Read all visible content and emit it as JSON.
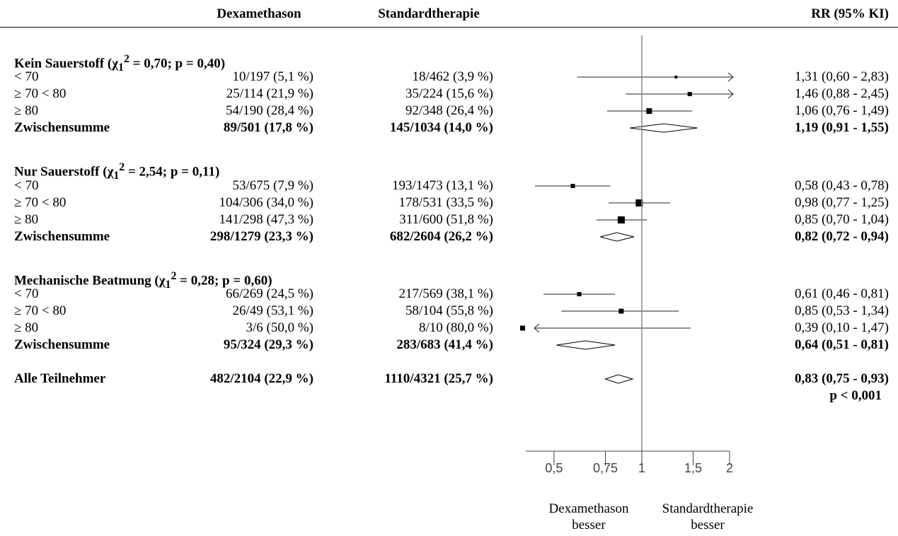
{
  "header": {
    "col_dexa": "Dexamethason",
    "col_std": "Standardtherapie",
    "col_rr": "RR (95% KI)"
  },
  "groups": [
    {
      "title_html": "Kein Sauerstoff (χ<sub>1</sub><sup>2</sup> = 0,70; p = 0,40)",
      "title_text": "Kein Sauerstoff (χ12 = 0,70; p = 0,40)",
      "rows": [
        {
          "label": "< 70",
          "dexa": "10/197 (5,1 %)",
          "std": "18/462 (3,9 %)",
          "rr": "1,31 (0,60 - 2,83)",
          "est": 1.31,
          "lo": 0.6,
          "hi": 2.83
        },
        {
          "label": "≥ 70 < 80",
          "dexa": "25/114 (21,9 %)",
          "std": "35/224 (15,6 %)",
          "rr": "1,46 (0,88 - 2,45)",
          "est": 1.46,
          "lo": 0.88,
          "hi": 2.45
        },
        {
          "label": "≥ 80",
          "dexa": "54/190 (28,4 %)",
          "std": "92/348 (26,4 %)",
          "rr": "1,06 (0,76 - 1,49)",
          "est": 1.06,
          "lo": 0.76,
          "hi": 1.49
        }
      ],
      "subtotal": {
        "label": "Zwischensumme",
        "dexa": "89/501 (17,8 %)",
        "std": "145/1034 (14,0 %)",
        "rr": "1,19 (0,91 - 1,55)",
        "est": 1.19,
        "lo": 0.91,
        "hi": 1.55
      }
    },
    {
      "title_html": "Nur Sauerstoff (χ<sub>1</sub><sup>2</sup> = 2,54; p = 0,11)",
      "title_text": "Nur Sauerstoff (χ12 = 2,54; p = 0,11)",
      "rows": [
        {
          "label": "< 70",
          "dexa": "53/675 (7,9 %)",
          "std": "193/1473 (13,1 %)",
          "rr": "0,58 (0,43 - 0,78)",
          "est": 0.58,
          "lo": 0.43,
          "hi": 0.78
        },
        {
          "label": "≥ 70 < 80",
          "dexa": "104/306 (34,0 %)",
          "std": "178/531 (33,5 %)",
          "rr": "0,98 (0,77 - 1,25)",
          "est": 0.98,
          "lo": 0.77,
          "hi": 1.25
        },
        {
          "label": "≥ 80",
          "dexa": "141/298 (47,3 %)",
          "std": "311/600 (51,8 %)",
          "rr": "0,85 (0,70 - 1,04)",
          "est": 0.85,
          "lo": 0.7,
          "hi": 1.04
        }
      ],
      "subtotal": {
        "label": "Zwischensumme",
        "dexa": "298/1279 (23,3 %)",
        "std": "682/2604 (26,2 %)",
        "rr": "0,82 (0,72 - 0,94)",
        "est": 0.82,
        "lo": 0.72,
        "hi": 0.94
      }
    },
    {
      "title_html": "Mechanische Beatmung (χ<sub>1</sub><sup>2</sup> = 0,28; p = 0,60)",
      "title_text": "Mechanische Beatmung (χ12 = 0,28; p = 0,60)",
      "rows": [
        {
          "label": "< 70",
          "dexa": "66/269 (24,5 %)",
          "std": "217/569 (38,1 %)",
          "rr": "0,61 (0,46 - 0,81)",
          "est": 0.61,
          "lo": 0.46,
          "hi": 0.81
        },
        {
          "label": "≥ 70 < 80",
          "dexa": "26/49 (53,1 %)",
          "std": "58/104 (55,8 %)",
          "rr": "0,85 (0,53 - 1,34)",
          "est": 0.85,
          "lo": 0.53,
          "hi": 1.34
        },
        {
          "label": "≥ 80",
          "dexa": "3/6 (50,0 %)",
          "std": "8/10 (80,0 %)",
          "rr": "0,39 (0,10 - 1,47)",
          "est": 0.39,
          "lo": 0.1,
          "hi": 1.47
        }
      ],
      "subtotal": {
        "label": "Zwischensumme",
        "dexa": "95/324 (29,3 %)",
        "std": "283/683 (41,4 %)",
        "rr": "0,64 (0,51 - 0,81)",
        "est": 0.64,
        "lo": 0.51,
        "hi": 0.81
      }
    }
  ],
  "overall": {
    "label": "Alle Teilnehmer",
    "dexa": "482/2104 (22,9 %)",
    "std": "1110/4321 (25,7 %)",
    "rr": "0,83 (0,75 - 0,93)",
    "p": "p < 0,001",
    "est": 0.83,
    "lo": 0.75,
    "hi": 0.93
  },
  "chart_data": {
    "type": "forest",
    "scale": "log",
    "xlim": [
      0.4,
      2
    ],
    "reference_line": 1,
    "ticks": [
      0.5,
      0.75,
      1,
      1.5,
      2
    ],
    "tick_labels": [
      "0,5",
      "0,75",
      "1",
      "1,5",
      "2"
    ],
    "left_label": [
      "Dexamethason",
      "besser"
    ],
    "right_label": [
      "Standardtherapie",
      "besser"
    ]
  }
}
